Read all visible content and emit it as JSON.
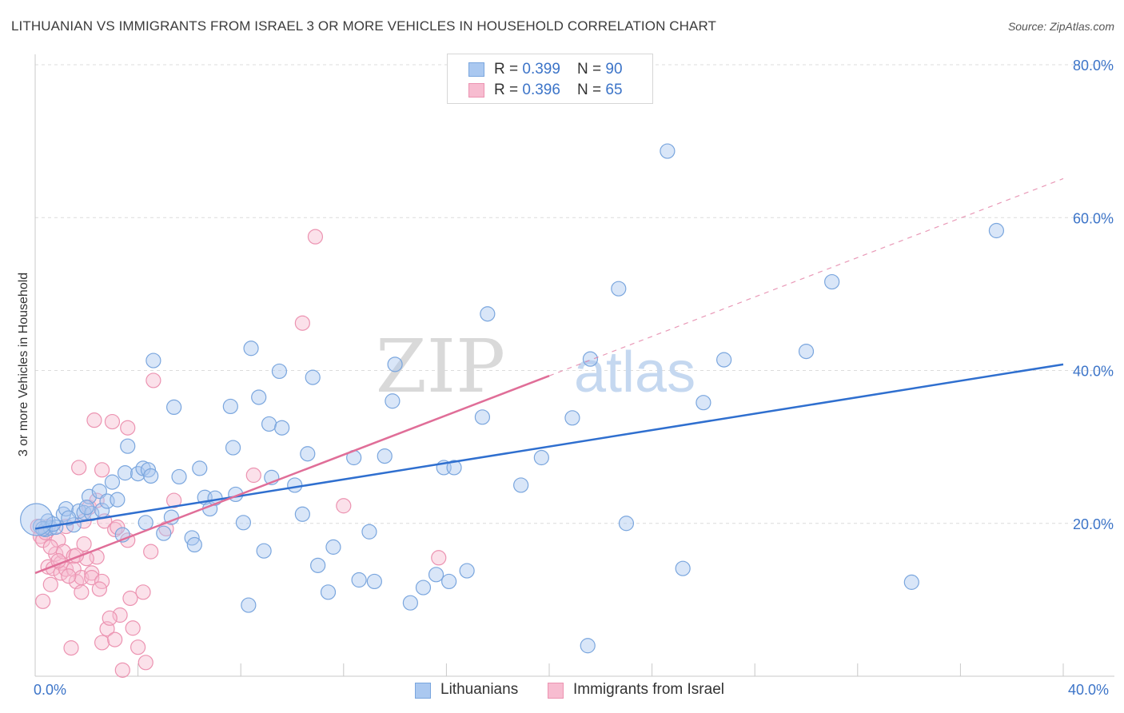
{
  "header": {
    "title": "LITHUANIAN VS IMMIGRANTS FROM ISRAEL 3 OR MORE VEHICLES IN HOUSEHOLD CORRELATION CHART",
    "source": "Source: ZipAtlas.com"
  },
  "watermark": {
    "zip": "ZIP",
    "atlas": "atlas"
  },
  "legend_top": {
    "rows": [
      {
        "r_label": "R = ",
        "r_value": "0.399",
        "n_label": "N = ",
        "n_value": "90"
      },
      {
        "r_label": "R = ",
        "r_value": "0.396",
        "n_label": "N = ",
        "n_value": "65"
      }
    ]
  },
  "colors": {
    "blue_fill": "#aac8f0",
    "blue_stroke": "#7aa6de",
    "blue_line": "#2f6fcf",
    "pink_fill": "#f7bcd0",
    "pink_stroke": "#ec93b1",
    "pink_line": "#e06e98",
    "axis_text": "#3c74c8",
    "grid": "#dcdcdc"
  },
  "chart_data": {
    "type": "scatter",
    "title": "LITHUANIAN VS IMMIGRANTS FROM ISRAEL 3 OR MORE VEHICLES IN HOUSEHOLD CORRELATION CHART",
    "xlabel": "",
    "ylabel": "3 or more Vehicles in Household",
    "xlim": [
      0,
      40
    ],
    "ylim": [
      0,
      80
    ],
    "x_tick_labels": [
      "0.0%",
      "40.0%"
    ],
    "y_ticks": [
      20,
      40,
      60,
      80
    ],
    "y_tick_labels": [
      "20.0%",
      "40.0%",
      "60.0%",
      "80.0%"
    ],
    "grid": true,
    "legend_position": "bottom-center",
    "series": [
      {
        "name": "Lithuanians",
        "color": "#aac8f0",
        "trend": {
          "x": [
            0,
            40
          ],
          "y": [
            19.3,
            40.8
          ]
        },
        "points": [
          [
            0.2,
            19.6
          ],
          [
            0.4,
            19.2
          ],
          [
            0.5,
            20.3
          ],
          [
            0.6,
            19.4
          ],
          [
            0.8,
            19.5
          ],
          [
            1.1,
            21.2
          ],
          [
            1.2,
            21.9
          ],
          [
            1.5,
            19.8
          ],
          [
            1.7,
            21.6
          ],
          [
            1.9,
            21.4
          ],
          [
            2.1,
            23.5
          ],
          [
            2.2,
            21.3
          ],
          [
            2.5,
            24.2
          ],
          [
            2.6,
            21.7
          ],
          [
            2.8,
            22.9
          ],
          [
            3.2,
            23.1
          ],
          [
            3.4,
            18.5
          ],
          [
            3.5,
            26.6
          ],
          [
            3.6,
            30.1
          ],
          [
            4.0,
            26.5
          ],
          [
            4.2,
            27.2
          ],
          [
            4.3,
            20.1
          ],
          [
            4.4,
            27.0
          ],
          [
            4.5,
            26.2
          ],
          [
            4.6,
            41.3
          ],
          [
            5.0,
            18.7
          ],
          [
            5.3,
            20.8
          ],
          [
            5.4,
            35.2
          ],
          [
            5.6,
            26.1
          ],
          [
            6.1,
            18.1
          ],
          [
            6.2,
            17.2
          ],
          [
            6.4,
            27.2
          ],
          [
            6.6,
            23.4
          ],
          [
            6.8,
            21.9
          ],
          [
            7.0,
            23.3
          ],
          [
            7.6,
            35.3
          ],
          [
            7.7,
            29.9
          ],
          [
            7.8,
            23.8
          ],
          [
            8.1,
            20.1
          ],
          [
            8.3,
            9.3
          ],
          [
            8.4,
            42.9
          ],
          [
            8.7,
            36.5
          ],
          [
            8.9,
            16.4
          ],
          [
            9.1,
            33.0
          ],
          [
            9.2,
            26.0
          ],
          [
            9.5,
            39.9
          ],
          [
            9.6,
            32.5
          ],
          [
            10.1,
            25.0
          ],
          [
            10.4,
            21.2
          ],
          [
            10.6,
            29.1
          ],
          [
            10.8,
            39.1
          ],
          [
            11.0,
            14.5
          ],
          [
            11.4,
            11.0
          ],
          [
            11.6,
            16.9
          ],
          [
            12.4,
            28.6
          ],
          [
            12.6,
            12.6
          ],
          [
            13.0,
            18.9
          ],
          [
            13.2,
            12.4
          ],
          [
            13.6,
            28.8
          ],
          [
            13.9,
            36.0
          ],
          [
            14.0,
            40.8
          ],
          [
            14.6,
            9.6
          ],
          [
            15.1,
            11.6
          ],
          [
            15.6,
            13.3
          ],
          [
            15.9,
            27.3
          ],
          [
            16.1,
            12.4
          ],
          [
            16.3,
            27.3
          ],
          [
            16.8,
            13.8
          ],
          [
            17.4,
            33.9
          ],
          [
            17.6,
            47.4
          ],
          [
            18.9,
            25.0
          ],
          [
            19.7,
            28.6
          ],
          [
            20.9,
            33.8
          ],
          [
            21.5,
            4.0
          ],
          [
            21.6,
            41.5
          ],
          [
            22.7,
            50.7
          ],
          [
            23.0,
            20.0
          ],
          [
            24.6,
            68.7
          ],
          [
            25.2,
            14.1
          ],
          [
            26.0,
            35.8
          ],
          [
            26.8,
            41.4
          ],
          [
            30.0,
            42.5
          ],
          [
            31.0,
            51.6
          ],
          [
            34.1,
            12.3
          ],
          [
            37.4,
            58.3
          ],
          [
            0.3,
            19.3
          ],
          [
            0.7,
            19.9
          ],
          [
            1.3,
            20.7
          ],
          [
            2.0,
            22.1
          ],
          [
            3.0,
            25.4
          ]
        ],
        "sizes_note": "one large point near x=0"
      },
      {
        "name": "Immigrants from Israel",
        "color": "#f7bcd0",
        "trend": {
          "x": [
            0,
            20
          ],
          "y": [
            13.5,
            39.3
          ]
        },
        "points": [
          [
            0.1,
            19.6
          ],
          [
            0.2,
            18.3
          ],
          [
            0.3,
            17.8
          ],
          [
            0.3,
            9.8
          ],
          [
            0.5,
            19.6
          ],
          [
            0.5,
            14.3
          ],
          [
            0.6,
            12.0
          ],
          [
            0.7,
            14.1
          ],
          [
            0.8,
            16.0
          ],
          [
            0.9,
            17.8
          ],
          [
            1.0,
            14.8
          ],
          [
            1.0,
            13.5
          ],
          [
            1.1,
            16.3
          ],
          [
            1.2,
            14.0
          ],
          [
            1.2,
            19.6
          ],
          [
            1.4,
            3.7
          ],
          [
            1.5,
            15.7
          ],
          [
            1.5,
            14.0
          ],
          [
            1.6,
            12.4
          ],
          [
            1.7,
            27.3
          ],
          [
            1.8,
            12.9
          ],
          [
            1.8,
            11.0
          ],
          [
            1.9,
            17.3
          ],
          [
            1.9,
            20.3
          ],
          [
            2.1,
            22.1
          ],
          [
            2.2,
            13.5
          ],
          [
            2.2,
            12.9
          ],
          [
            2.3,
            33.5
          ],
          [
            2.4,
            15.6
          ],
          [
            2.4,
            23.0
          ],
          [
            2.6,
            12.4
          ],
          [
            2.6,
            4.4
          ],
          [
            2.6,
            27.0
          ],
          [
            2.7,
            20.3
          ],
          [
            2.8,
            6.2
          ],
          [
            3.0,
            33.3
          ],
          [
            3.1,
            4.8
          ],
          [
            3.1,
            19.2
          ],
          [
            3.2,
            19.5
          ],
          [
            3.3,
            8.0
          ],
          [
            3.4,
            0.8
          ],
          [
            3.6,
            32.5
          ],
          [
            3.6,
            17.8
          ],
          [
            3.7,
            10.2
          ],
          [
            3.8,
            6.3
          ],
          [
            4.0,
            3.8
          ],
          [
            4.2,
            11.0
          ],
          [
            4.3,
            1.8
          ],
          [
            4.5,
            16.3
          ],
          [
            4.6,
            38.7
          ],
          [
            5.1,
            19.3
          ],
          [
            5.4,
            23.0
          ],
          [
            8.5,
            26.3
          ],
          [
            10.4,
            46.2
          ],
          [
            10.9,
            57.5
          ],
          [
            12.0,
            22.3
          ],
          [
            15.7,
            15.5
          ],
          [
            0.4,
            18.8
          ],
          [
            0.9,
            15.1
          ],
          [
            1.3,
            13.1
          ],
          [
            2.0,
            15.4
          ],
          [
            2.9,
            7.6
          ],
          [
            0.6,
            16.9
          ],
          [
            1.6,
            15.8
          ],
          [
            2.5,
            11.4
          ]
        ]
      }
    ]
  },
  "bottom_legend": {
    "items": [
      {
        "label": "Lithuanians"
      },
      {
        "label": "Immigrants from Israel"
      }
    ]
  },
  "axes": {
    "x_min_label": "0.0%",
    "x_max_label": "40.0%"
  }
}
